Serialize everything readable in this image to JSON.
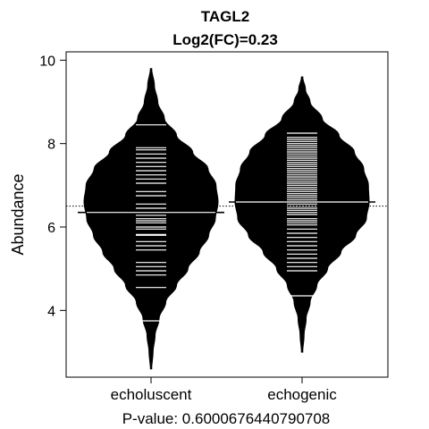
{
  "chart_data": {
    "type": "beanplot",
    "title": "TAGL2",
    "subtitle": "Log2(FC)=0.23",
    "ylabel": "Abundance",
    "xlabel": "P-value: 0.6000676440790708",
    "categories": [
      "echoluscent",
      "echogenic"
    ],
    "ylim": [
      2.4,
      10.2
    ],
    "yticks": [
      4,
      6,
      8,
      10
    ],
    "overall_mean": 6.5,
    "colors": {
      "bean": "#000000",
      "lines": "#ffffff",
      "frame": "#000000"
    },
    "grid": false,
    "legend": "none",
    "series": [
      {
        "mean": 6.35,
        "min": 2.6,
        "max": 9.8,
        "density": [
          [
            2.6,
            0.01
          ],
          [
            3.0,
            0.03
          ],
          [
            3.4,
            0.06
          ],
          [
            3.8,
            0.12
          ],
          [
            4.2,
            0.22
          ],
          [
            4.6,
            0.38
          ],
          [
            5.0,
            0.55
          ],
          [
            5.4,
            0.72
          ],
          [
            5.8,
            0.86
          ],
          [
            6.2,
            0.96
          ],
          [
            6.6,
            1.0
          ],
          [
            7.0,
            0.97
          ],
          [
            7.4,
            0.85
          ],
          [
            7.8,
            0.62
          ],
          [
            8.2,
            0.38
          ],
          [
            8.6,
            0.2
          ],
          [
            9.0,
            0.1
          ],
          [
            9.4,
            0.05
          ],
          [
            9.8,
            0.01
          ]
        ],
        "observations": [
          3.75,
          4.55,
          4.85,
          4.95,
          5.05,
          5.15,
          5.45,
          5.55,
          5.65,
          5.8,
          5.82,
          5.95,
          6.0,
          6.1,
          6.15,
          6.2,
          6.28,
          6.35,
          6.45,
          6.55,
          6.75,
          6.85,
          7.05,
          7.15,
          7.25,
          7.35,
          7.45,
          7.55,
          7.65,
          7.75,
          7.85,
          7.9,
          8.45
        ]
      },
      {
        "mean": 6.6,
        "min": 3.0,
        "max": 9.6,
        "density": [
          [
            3.0,
            0.01
          ],
          [
            3.4,
            0.03
          ],
          [
            3.8,
            0.06
          ],
          [
            4.2,
            0.12
          ],
          [
            4.6,
            0.22
          ],
          [
            5.0,
            0.38
          ],
          [
            5.4,
            0.58
          ],
          [
            5.8,
            0.8
          ],
          [
            6.2,
            0.96
          ],
          [
            6.6,
            1.0
          ],
          [
            7.0,
            0.99
          ],
          [
            7.4,
            0.92
          ],
          [
            7.8,
            0.78
          ],
          [
            8.2,
            0.55
          ],
          [
            8.6,
            0.3
          ],
          [
            9.0,
            0.12
          ],
          [
            9.3,
            0.05
          ],
          [
            9.6,
            0.01
          ]
        ],
        "observations": [
          4.35,
          4.95,
          5.05,
          5.15,
          5.25,
          5.35,
          5.45,
          5.55,
          5.65,
          5.75,
          5.85,
          5.95,
          6.05,
          6.1,
          6.15,
          6.2,
          6.3,
          6.35,
          6.4,
          6.45,
          6.5,
          6.55,
          6.6,
          6.65,
          6.7,
          6.75,
          6.8,
          6.85,
          6.9,
          6.95,
          7.0,
          7.05,
          7.1,
          7.15,
          7.2,
          7.25,
          7.3,
          7.35,
          7.4,
          7.45,
          7.5,
          7.55,
          7.6,
          7.65,
          7.7,
          7.75,
          7.8,
          7.85,
          7.9,
          7.95,
          8.0,
          8.05,
          8.1,
          8.15,
          8.25
        ]
      }
    ]
  }
}
